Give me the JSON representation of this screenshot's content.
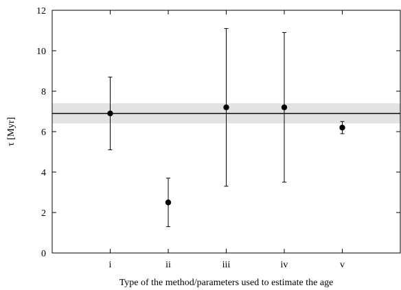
{
  "chart_data": {
    "type": "scatter",
    "xlabel": "Type of the method/parameters used to estimate the age",
    "ylabel": "τ [Myr]",
    "categories": [
      "i",
      "ii",
      "iii",
      "iv",
      "v"
    ],
    "x": [
      1,
      2,
      3,
      4,
      5
    ],
    "xlim": [
      0,
      6
    ],
    "ylim": [
      0,
      12
    ],
    "yticks": [
      0,
      2,
      4,
      6,
      8,
      10,
      12
    ],
    "grid": false,
    "points": [
      {
        "category": "i",
        "y": 6.9,
        "err_low": 5.1,
        "err_high": 8.7
      },
      {
        "category": "ii",
        "y": 2.5,
        "err_low": 1.3,
        "err_high": 3.7
      },
      {
        "category": "iii",
        "y": 7.2,
        "err_low": 3.3,
        "err_high": 11.1
      },
      {
        "category": "iv",
        "y": 7.2,
        "err_low": 3.5,
        "err_high": 10.9
      },
      {
        "category": "v",
        "y": 6.2,
        "err_low": 5.9,
        "err_high": 6.5
      }
    ],
    "reference_line": {
      "y": 6.9
    },
    "reference_band": {
      "low": 6.4,
      "high": 7.4
    },
    "colors": {
      "band": "#e3e3e3",
      "marks": "#000000"
    }
  }
}
